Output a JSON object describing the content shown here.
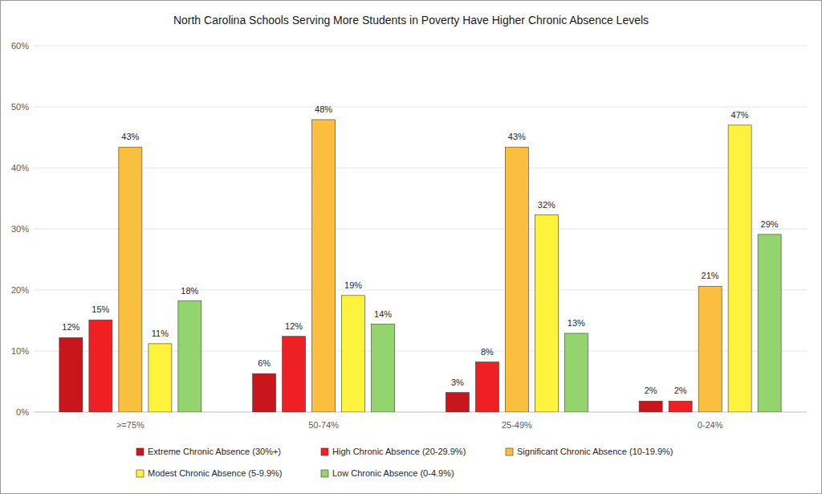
{
  "chart_data": {
    "type": "bar",
    "title": "North Carolina Schools Serving More Students in Poverty Have Higher Chronic Absence Levels",
    "categories": [
      ">=75%",
      "50-74%",
      "25-49%",
      "0-24%"
    ],
    "series": [
      {
        "name": "Extreme Chronic Absence (30%+)",
        "color": "#c9161c",
        "values": [
          12.2,
          6.3,
          3.2,
          1.8
        ],
        "value_labels": [
          "12%",
          "6%",
          "3%",
          "2%"
        ]
      },
      {
        "name": "High Chronic Absence (20-29.9%)",
        "color": "#ee2024",
        "values": [
          15.1,
          12.4,
          8.2,
          1.8
        ],
        "value_labels": [
          "15%",
          "12%",
          "8%",
          "2%"
        ]
      },
      {
        "name": "Significant Chronic Absence (10-19.9%)",
        "color": "#fbbf40",
        "values": [
          43.4,
          47.9,
          43.4,
          20.6
        ],
        "value_labels": [
          "43%",
          "48%",
          "43%",
          "21%"
        ]
      },
      {
        "name": "Modest Chronic Absence (5-9.9%)",
        "color": "#fdf23c",
        "values": [
          11.2,
          19.1,
          32.3,
          47.0
        ],
        "value_labels": [
          "11%",
          "19%",
          "32%",
          "47%"
        ]
      },
      {
        "name": "Low Chronic Absence (0-4.9%)",
        "color": "#93d46f",
        "values": [
          18.2,
          14.4,
          12.9,
          29.1
        ],
        "value_labels": [
          "18%",
          "14%",
          "13%",
          "29%"
        ]
      }
    ],
    "ylim": [
      0,
      60
    ],
    "yticks": [
      {
        "value": 0,
        "label": "0%"
      },
      {
        "value": 10,
        "label": "10%"
      },
      {
        "value": 20,
        "label": "20%"
      },
      {
        "value": 30,
        "label": "30%"
      },
      {
        "value": 40,
        "label": "40%"
      },
      {
        "value": 50,
        "label": "50%"
      },
      {
        "value": 60,
        "label": "60%"
      }
    ],
    "grid": true,
    "legend": "bottom",
    "data_labels": true
  }
}
